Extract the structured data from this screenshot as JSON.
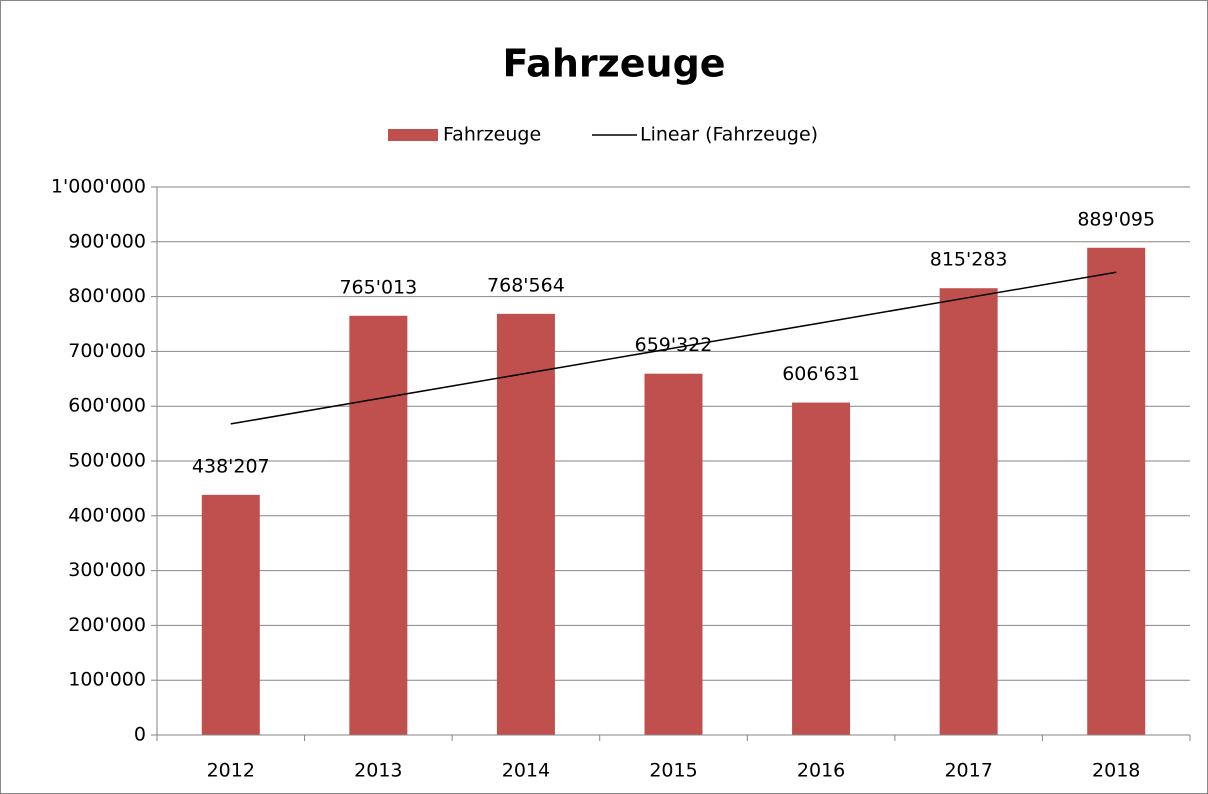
{
  "chart_data": {
    "type": "bar",
    "title": "Fahrzeuge",
    "categories": [
      "2012",
      "2013",
      "2014",
      "2015",
      "2016",
      "2017",
      "2018"
    ],
    "series": [
      {
        "name": "Fahrzeuge",
        "color": "#c0504d",
        "values": [
          438207,
          765013,
          768564,
          659322,
          606631,
          815283,
          889095
        ],
        "value_labels": [
          "438'207",
          "765'013",
          "768'564",
          "659'322",
          "606'631",
          "815'283",
          "889'095"
        ]
      },
      {
        "name": "Linear (Fahrzeuge)",
        "type": "line",
        "color": "#000000",
        "values": [
          567666,
          613783,
          659900,
          706016,
          752133,
          798250,
          844367
        ]
      }
    ],
    "ylim": [
      0,
      1000000
    ],
    "yticks": [
      0,
      {
        "value": 100000,
        "label": "100'000"
      },
      {
        "value": 200000,
        "label": "200'000"
      },
      {
        "value": 300000,
        "label": "300'000"
      },
      {
        "value": 400000,
        "label": "400'000"
      },
      {
        "value": 500000,
        "label": "500'000"
      },
      {
        "value": 600000,
        "label": "600'000"
      },
      {
        "value": 700000,
        "label": "700'000"
      },
      {
        "value": 800000,
        "label": "800'000"
      },
      {
        "value": 900000,
        "label": "900'000"
      },
      {
        "value": 1000000,
        "label": "1'000'000"
      }
    ],
    "grid": true,
    "legend": "top"
  }
}
